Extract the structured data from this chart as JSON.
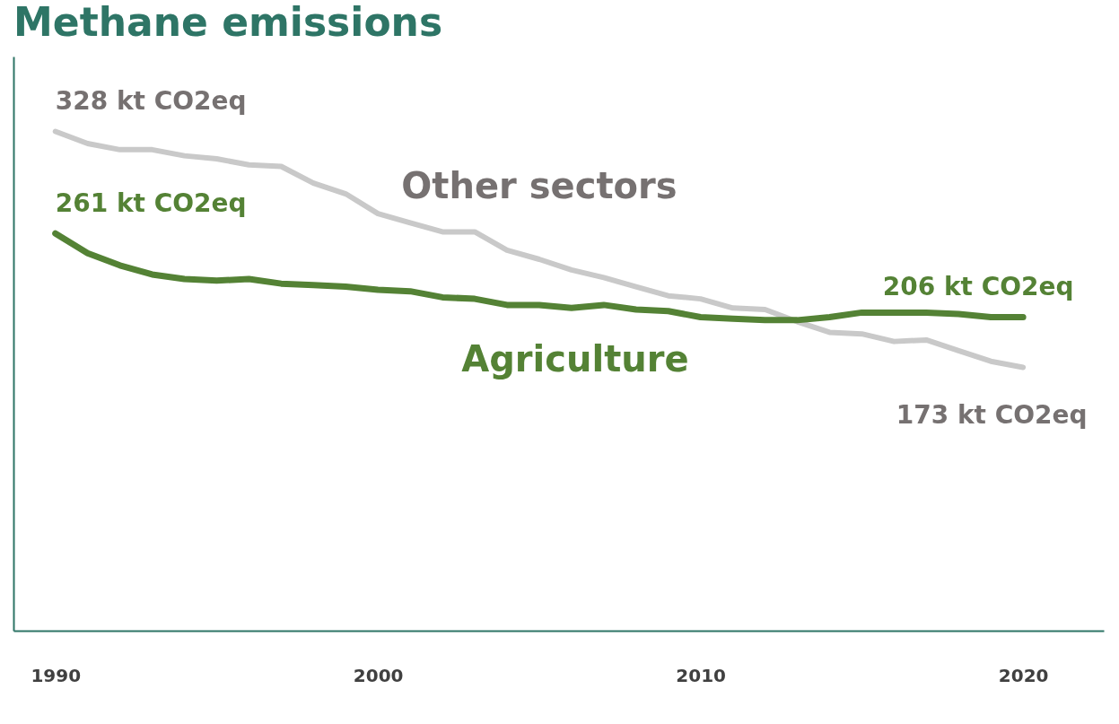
{
  "chart_data": {
    "type": "line",
    "title": "Methane emissions",
    "x": [
      1990,
      1991,
      1992,
      1993,
      1994,
      1995,
      1996,
      1997,
      1998,
      1999,
      2000,
      2001,
      2002,
      2003,
      2004,
      2005,
      2006,
      2007,
      2008,
      2009,
      2010,
      2011,
      2012,
      2013,
      2014,
      2015,
      2016,
      2017,
      2018,
      2019,
      2020
    ],
    "series": [
      {
        "name": "Other sectors",
        "color": "#c9c9c9",
        "values": [
          328,
          320,
          316,
          316,
          312,
          310,
          306,
          305,
          294,
          287,
          274,
          268,
          262,
          262,
          250,
          244,
          237,
          232,
          226,
          220,
          218,
          212,
          211,
          203,
          196,
          195,
          190,
          191,
          184,
          177,
          173
        ],
        "value_labels": [
          "328 kt CO2eq",
          null,
          null,
          null,
          null,
          null,
          null,
          null,
          null,
          null,
          null,
          null,
          null,
          null,
          null,
          null,
          null,
          null,
          null,
          null,
          null,
          null,
          null,
          null,
          null,
          null,
          null,
          null,
          null,
          null,
          "173 kt CO2eq"
        ]
      },
      {
        "name": "Agriculture",
        "color": "#548235",
        "values": [
          261,
          248,
          240,
          234,
          231,
          230,
          231,
          228,
          227,
          226,
          224,
          223,
          219,
          218,
          214,
          214,
          212,
          214,
          211,
          210,
          206,
          205,
          204,
          204,
          206,
          209,
          209,
          209,
          208,
          206,
          206
        ],
        "value_labels": [
          "261 kt CO2eq",
          null,
          null,
          null,
          null,
          null,
          null,
          null,
          null,
          null,
          null,
          null,
          null,
          null,
          null,
          null,
          null,
          null,
          null,
          null,
          null,
          null,
          null,
          null,
          null,
          null,
          null,
          null,
          null,
          null,
          "206 kt CO2eq"
        ]
      }
    ],
    "xlim": [
      1988.7,
      2022.5
    ],
    "xticks": [
      1990,
      2000,
      2010,
      2020
    ],
    "tick_labels": "x",
    "grid": false,
    "legend": false,
    "marker": "none",
    "line_style": "solid"
  }
}
